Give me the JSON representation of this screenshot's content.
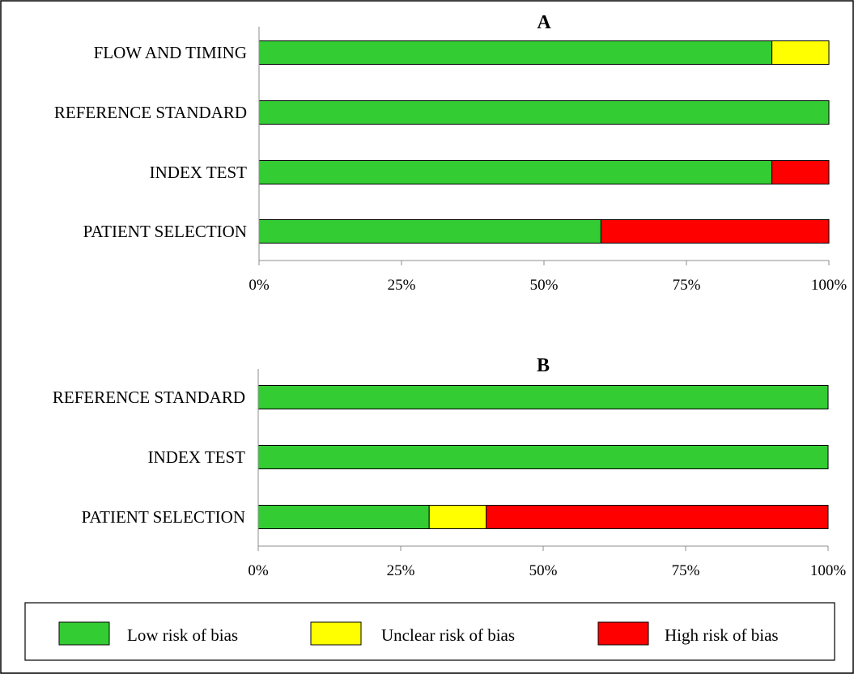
{
  "colors": {
    "low": "#33cc33",
    "unclear": "#ffff00",
    "high": "#ff0000"
  },
  "legend": {
    "items": [
      {
        "key": "low",
        "label": "Low risk of bias"
      },
      {
        "key": "unclear",
        "label": "Unclear risk of bias"
      },
      {
        "key": "high",
        "label": "High risk of bias"
      }
    ]
  },
  "chart_data": [
    {
      "type": "bar",
      "stacked": true,
      "orientation": "horizontal",
      "title": "A",
      "categories": [
        "FLOW AND TIMING",
        "REFERENCE STANDARD",
        "INDEX TEST",
        "PATIENT SELECTION"
      ],
      "series": [
        {
          "name": "Low risk of bias",
          "key": "low",
          "values": [
            90,
            100,
            90,
            60
          ]
        },
        {
          "name": "Unclear risk of bias",
          "key": "unclear",
          "values": [
            10,
            0,
            0,
            0
          ]
        },
        {
          "name": "High risk of bias",
          "key": "high",
          "values": [
            0,
            0,
            10,
            40
          ]
        }
      ],
      "xlim": [
        0,
        100
      ],
      "xticks": [
        0,
        25,
        50,
        75,
        100
      ],
      "xtick_labels": [
        "0%",
        "25%",
        "50%",
        "75%",
        "100%"
      ],
      "grid": false
    },
    {
      "type": "bar",
      "stacked": true,
      "orientation": "horizontal",
      "title": "B",
      "categories": [
        "REFERENCE STANDARD",
        "INDEX TEST",
        "PATIENT SELECTION"
      ],
      "series": [
        {
          "name": "Low risk of bias",
          "key": "low",
          "values": [
            100,
            100,
            30
          ]
        },
        {
          "name": "Unclear risk of bias",
          "key": "unclear",
          "values": [
            0,
            0,
            10
          ]
        },
        {
          "name": "High risk of bias",
          "key": "high",
          "values": [
            0,
            0,
            60
          ]
        }
      ],
      "xlim": [
        0,
        100
      ],
      "xticks": [
        0,
        25,
        50,
        75,
        100
      ],
      "xtick_labels": [
        "0%",
        "25%",
        "50%",
        "75%",
        "100%"
      ],
      "grid": false
    }
  ]
}
